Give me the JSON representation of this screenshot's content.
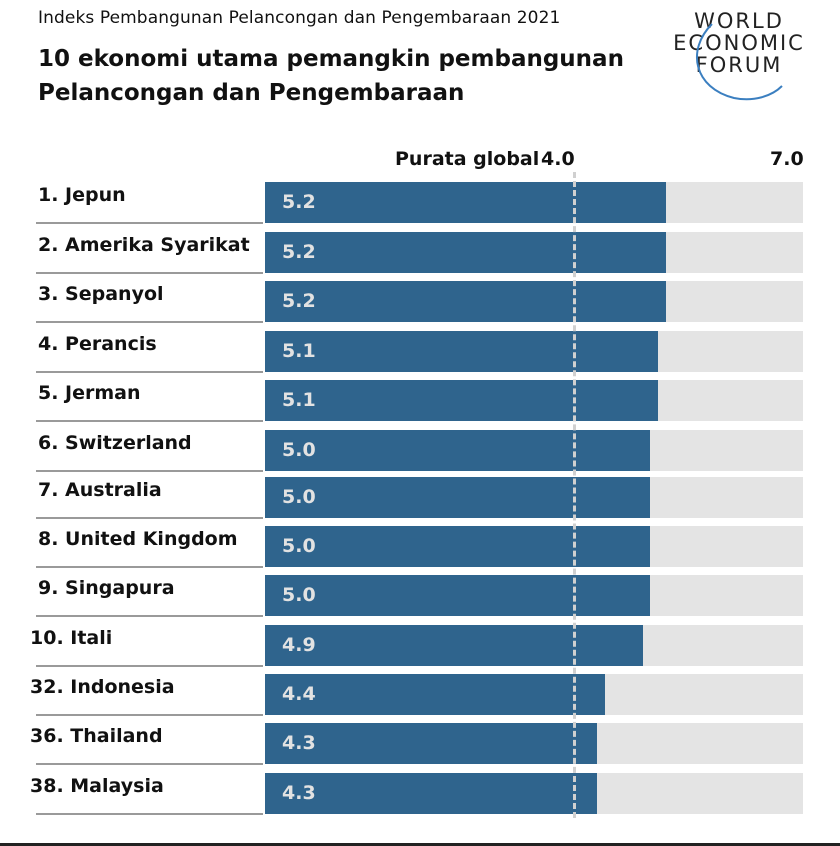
{
  "header": {
    "subtitle": "Indeks Pembangunan Pelancongan dan Pengembaraan 2021",
    "title": "10 ekonomi utama pemangkin pembangunan Pelancongan dan Pengembaraan"
  },
  "logo": {
    "line1": "WORLD",
    "line2": "ECONOMIC",
    "line3": "FORUM"
  },
  "axis": {
    "average_label": "Purata global",
    "average_value": "4.0",
    "max_value": "7.0"
  },
  "colors": {
    "bar": "#2f648d",
    "track": "#e4e4e4",
    "average_line": "#d0d0d0"
  },
  "rows": [
    {
      "label": "1. Jepun",
      "value": "5.2"
    },
    {
      "label": "2. Amerika Syarikat",
      "value": "5.2"
    },
    {
      "label": "3. Sepanyol",
      "value": "5.2"
    },
    {
      "label": "4. Perancis",
      "value": "5.1"
    },
    {
      "label": "5. Jerman",
      "value": "5.1"
    },
    {
      "label": "6. Switzerland",
      "value": "5.0"
    },
    {
      "label": "7. Australia",
      "value": "5.0"
    },
    {
      "label": "8. United Kingdom",
      "value": "5.0"
    },
    {
      "label": "9. Singapura",
      "value": "5.0"
    },
    {
      "label": "10. Itali",
      "value": "4.9"
    },
    {
      "label": "32. Indonesia",
      "value": "4.4"
    },
    {
      "label": "36. Thailand",
      "value": "4.3"
    },
    {
      "label": "38. Malaysia",
      "value": "4.3"
    }
  ],
  "chart_data": {
    "type": "bar",
    "orientation": "horizontal",
    "title": "10 ekonomi utama pemangkin pembangunan Pelancongan dan Pengembaraan",
    "subtitle": "Indeks Pembangunan Pelancongan dan Pengembaraan 2021",
    "categories": [
      "1. Jepun",
      "2. Amerika Syarikat",
      "3. Sepanyol",
      "4. Perancis",
      "5. Jerman",
      "6. Switzerland",
      "7. Australia",
      "8. United Kingdom",
      "9. Singapura",
      "10. Itali",
      "32. Indonesia",
      "36. Thailand",
      "38. Malaysia"
    ],
    "values": [
      5.2,
      5.2,
      5.2,
      5.1,
      5.1,
      5.0,
      5.0,
      5.0,
      5.0,
      4.9,
      4.4,
      4.3,
      4.3
    ],
    "xlabel": "",
    "ylabel": "",
    "xlim": [
      0,
      7.0
    ],
    "reference_line": {
      "label": "Purata global",
      "value": 4.0,
      "style": "dashed"
    },
    "grid": false,
    "legend": null
  }
}
